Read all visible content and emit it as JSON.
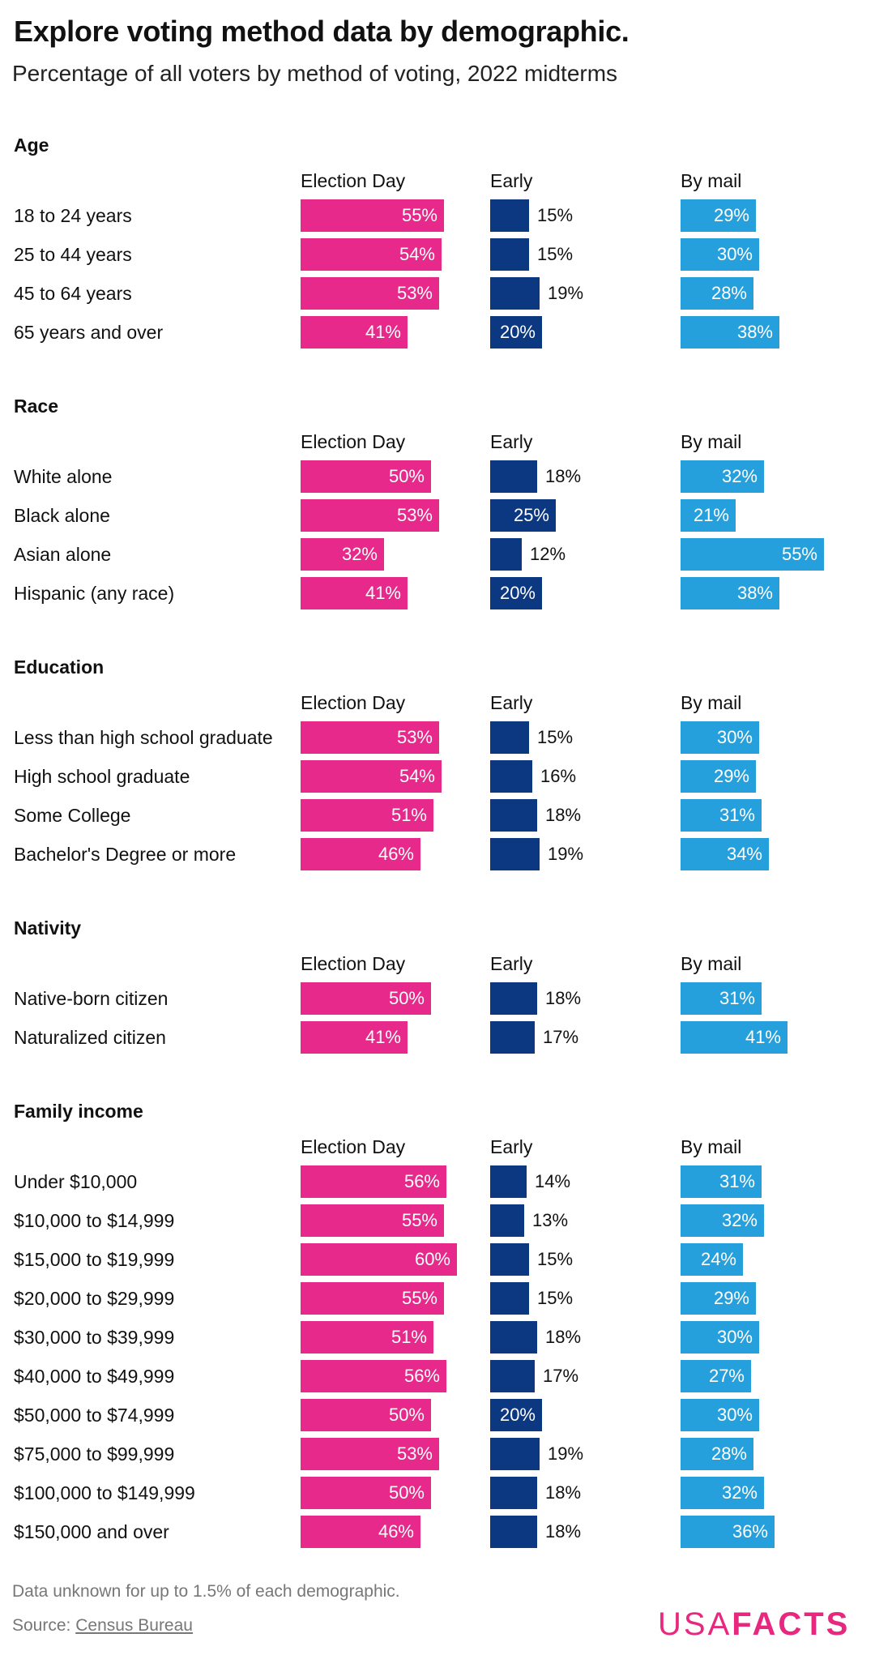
{
  "title": "Explore voting method data by demographic.",
  "subtitle": "Percentage of all voters by method of voting, 2022 midterms",
  "colors": {
    "election_day": "#e6298b",
    "early": "#0c3781",
    "by_mail": "#26a0dc"
  },
  "columns": [
    "Election Day",
    "Early",
    "By mail"
  ],
  "chart_data": [
    {
      "type": "bar",
      "title": "Age",
      "categories": [
        "18 to 24 years",
        "25 to 44 years",
        "45 to 64 years",
        "65 years and over"
      ],
      "series": [
        {
          "name": "Election Day",
          "values": [
            55,
            54,
            53,
            41
          ]
        },
        {
          "name": "Early",
          "values": [
            15,
            15,
            19,
            20
          ]
        },
        {
          "name": "By mail",
          "values": [
            29,
            30,
            28,
            38
          ]
        }
      ]
    },
    {
      "type": "bar",
      "title": "Race",
      "categories": [
        "White alone",
        "Black alone",
        "Asian alone",
        "Hispanic (any race)"
      ],
      "series": [
        {
          "name": "Election Day",
          "values": [
            50,
            53,
            32,
            41
          ]
        },
        {
          "name": "Early",
          "values": [
            18,
            25,
            12,
            20
          ]
        },
        {
          "name": "By mail",
          "values": [
            32,
            21,
            55,
            38
          ]
        }
      ]
    },
    {
      "type": "bar",
      "title": "Education",
      "categories": [
        "Less than high school graduate",
        "High school graduate",
        "Some College",
        "Bachelor's Degree or more"
      ],
      "series": [
        {
          "name": "Election Day",
          "values": [
            53,
            54,
            51,
            46
          ]
        },
        {
          "name": "Early",
          "values": [
            15,
            16,
            18,
            19
          ]
        },
        {
          "name": "By mail",
          "values": [
            30,
            29,
            31,
            34
          ]
        }
      ]
    },
    {
      "type": "bar",
      "title": "Nativity",
      "categories": [
        "Native-born citizen",
        "Naturalized citizen"
      ],
      "series": [
        {
          "name": "Election Day",
          "values": [
            50,
            41
          ]
        },
        {
          "name": "Early",
          "values": [
            18,
            17
          ]
        },
        {
          "name": "By mail",
          "values": [
            31,
            41
          ]
        }
      ]
    },
    {
      "type": "bar",
      "title": "Family income",
      "categories": [
        "Under $10,000",
        "$10,000 to $14,999",
        "$15,000 to $19,999",
        "$20,000 to $29,999",
        "$30,000 to $39,999",
        "$40,000 to $49,999",
        "$50,000 to $74,999",
        "$75,000 to $99,999",
        "$100,000 to $149,999",
        "$150,000 and over"
      ],
      "series": [
        {
          "name": "Election Day",
          "values": [
            56,
            55,
            60,
            55,
            51,
            56,
            50,
            53,
            50,
            46
          ]
        },
        {
          "name": "Early",
          "values": [
            14,
            13,
            15,
            15,
            18,
            17,
            20,
            19,
            18,
            18
          ]
        },
        {
          "name": "By mail",
          "values": [
            31,
            32,
            24,
            29,
            30,
            27,
            30,
            28,
            32,
            36
          ]
        }
      ]
    }
  ],
  "footnote": "Data unknown for up to 1.5% of each demographic.",
  "source_prefix": "Source: ",
  "source_link": "Census Bureau",
  "logo": {
    "usa": "USA",
    "facts": "FACTS"
  }
}
